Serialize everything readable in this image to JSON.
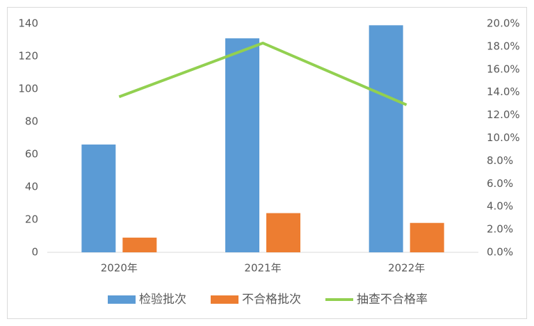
{
  "chart_data": {
    "type": "bar",
    "categories": [
      "2020年",
      "2021年",
      "2022年"
    ],
    "series": [
      {
        "name": "检验批次",
        "color": "#5b9bd5",
        "values": [
          66,
          131,
          139
        ]
      },
      {
        "name": "不合格批次",
        "color": "#ed7d31",
        "values": [
          9,
          24,
          18
        ]
      },
      {
        "name": "抽查不合格率",
        "color": "#92d050",
        "type": "line",
        "axis": "y2",
        "values": [
          13.6,
          18.3,
          12.9
        ]
      }
    ],
    "ylim": [
      0,
      140
    ],
    "yticks": [
      0,
      20,
      40,
      60,
      80,
      100,
      120,
      140
    ],
    "y2lim": [
      0,
      20
    ],
    "y2ticks": [
      {
        "value": 0,
        "label": "0.0%"
      },
      {
        "value": 2,
        "label": "2.0%"
      },
      {
        "value": 4,
        "label": "4.0%"
      },
      {
        "value": 6,
        "label": "6.0%"
      },
      {
        "value": 8,
        "label": "8.0%"
      },
      {
        "value": 10,
        "label": "10.0%"
      },
      {
        "value": 12,
        "label": "12.0%"
      },
      {
        "value": 14,
        "label": "14.0%"
      },
      {
        "value": 16,
        "label": "16.0%"
      },
      {
        "value": 18,
        "label": "18.0%"
      },
      {
        "value": 20,
        "label": "20.0%"
      }
    ],
    "legend": "bottom",
    "grid": false
  }
}
